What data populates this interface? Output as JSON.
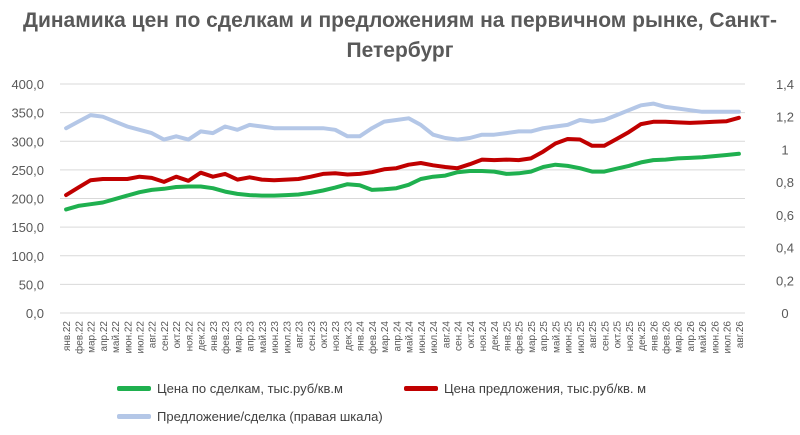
{
  "chart_data": {
    "type": "line",
    "title": "Динамика цен по сделкам и предложениям на первичном рынке, Санкт-Петербург",
    "categories": [
      "янв.22",
      "фев.22",
      "мар.22",
      "апр.22",
      "май.22",
      "июн.22",
      "июл.22",
      "авг.22",
      "сен.22",
      "окт.22",
      "ноя.22",
      "дек.22",
      "янв.23",
      "фев.23",
      "мар.23",
      "апр.23",
      "май.23",
      "июн.23",
      "июл.23",
      "авг.23",
      "сен.23",
      "окт.23",
      "ноя.23",
      "дек.23",
      "янв.24",
      "фев.24",
      "мар.24",
      "апр.24",
      "май.24",
      "июн.24",
      "июл.24",
      "авг.24",
      "сен.24",
      "окт.24",
      "ноя.24",
      "дек.24",
      "янв.25",
      "фев.25",
      "мар.25",
      "апр.25",
      "май.25",
      "июн.25",
      "июл.25",
      "авг.25",
      "сен.25",
      "окт.25",
      "ноя.25",
      "дек.25",
      "янв.26",
      "фев.26",
      "мар.26",
      "апр.26",
      "май.26",
      "июн.26",
      "июл.26",
      "авг.26"
    ],
    "left_axis": {
      "min": 0,
      "max": 400,
      "ticks": [
        "0,0",
        "50,0",
        "100,0",
        "150,0",
        "200,0",
        "250,0",
        "300,0",
        "350,0",
        "400,0"
      ]
    },
    "right_axis": {
      "min": 0,
      "max": 1.4,
      "ticks": [
        "0",
        "0,2",
        "0,4",
        "0,6",
        "0,8",
        "1",
        "1,2",
        "1,4"
      ]
    },
    "grid": true,
    "legend_position": "bottom",
    "series": [
      {
        "name": "Цена по сделкам, тыс.руб/кв.м",
        "axis": "left",
        "color": "#1fb04f",
        "values": [
          181,
          187,
          190,
          193,
          199,
          205,
          211,
          215,
          217,
          220,
          221,
          221,
          218,
          212,
          208,
          206,
          205,
          205,
          206,
          207,
          210,
          214,
          219,
          225,
          223,
          215,
          216,
          218,
          224,
          234,
          238,
          240,
          246,
          248,
          248,
          247,
          243,
          244,
          247,
          255,
          259,
          257,
          253,
          247,
          247,
          252,
          257,
          263,
          267,
          268,
          270,
          271,
          272,
          274,
          276,
          278
        ]
      },
      {
        "name": "Цена предложения, тыс.руб/кв. м",
        "axis": "left",
        "color": "#c00000",
        "values": [
          206,
          219,
          232,
          234,
          234,
          234,
          238,
          236,
          229,
          238,
          231,
          245,
          238,
          243,
          233,
          237,
          233,
          232,
          233,
          234,
          238,
          243,
          244,
          242,
          243,
          246,
          251,
          253,
          259,
          262,
          258,
          255,
          253,
          260,
          268,
          267,
          268,
          267,
          270,
          282,
          296,
          304,
          303,
          292,
          292,
          304,
          316,
          330,
          334,
          334,
          333,
          332,
          333,
          334,
          335,
          341
        ]
      },
      {
        "name": "Предложение/сделка (правая шкала)",
        "axis": "right",
        "color": "#b4c7e7",
        "values": [
          1.13,
          1.17,
          1.21,
          1.2,
          1.17,
          1.14,
          1.12,
          1.1,
          1.06,
          1.08,
          1.06,
          1.11,
          1.1,
          1.14,
          1.12,
          1.15,
          1.14,
          1.13,
          1.13,
          1.13,
          1.13,
          1.13,
          1.12,
          1.08,
          1.08,
          1.13,
          1.17,
          1.18,
          1.19,
          1.15,
          1.09,
          1.07,
          1.06,
          1.07,
          1.09,
          1.09,
          1.1,
          1.11,
          1.11,
          1.13,
          1.14,
          1.15,
          1.18,
          1.17,
          1.18,
          1.21,
          1.24,
          1.27,
          1.28,
          1.26,
          1.25,
          1.24,
          1.23,
          1.23,
          1.23,
          1.23
        ]
      }
    ]
  }
}
